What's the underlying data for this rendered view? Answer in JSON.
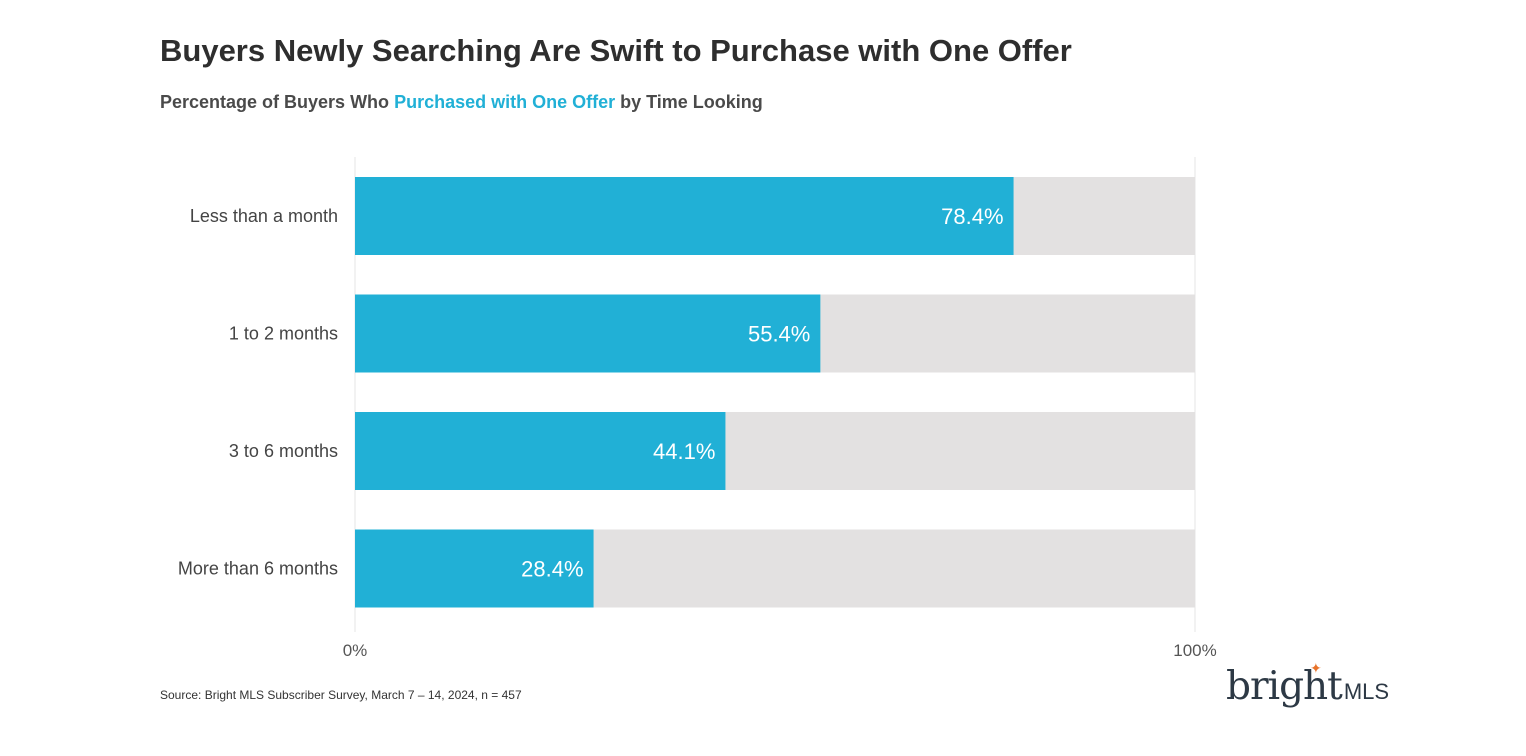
{
  "title": "Buyers Newly Searching Are Swift to Purchase with One Offer",
  "subtitle": {
    "prefix": "Percentage of Buyers Who ",
    "highlight": "Purchased with One Offer",
    "suffix": " by Time Looking"
  },
  "chart_data": {
    "type": "bar",
    "orientation": "horizontal",
    "title": "Buyers Newly Searching Are Swift to Purchase with One Offer",
    "subtitle": "Percentage of Buyers Who Purchased with One Offer by Time Looking",
    "categories": [
      "Less than a month",
      "1 to 2 months",
      "3 to 6 months",
      "More than 6 months"
    ],
    "values": [
      78.4,
      55.4,
      44.1,
      28.4
    ],
    "value_labels": [
      "78.4%",
      "55.4%",
      "44.1%",
      "28.4%"
    ],
    "xlim": [
      0,
      100
    ],
    "x_ticks": [
      "0%",
      "100%"
    ],
    "xlabel": "",
    "ylabel": "",
    "colors": {
      "bar": "#21b0d6",
      "background_bar": "#e3e1e1",
      "value_label": "#ffffff"
    }
  },
  "source": "Source: Bright MLS Subscriber Survey, March 7 – 14, 2024, n = 457",
  "logo": {
    "word": "bright",
    "suffix": "MLS",
    "spark_color": "#e8732a"
  }
}
